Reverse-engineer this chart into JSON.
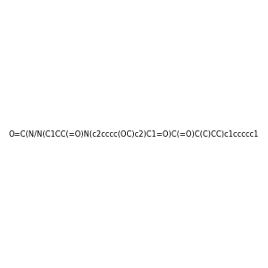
{
  "smiles": "O=C(N/N(C1CC(=O)N(c2cccc(OC)c2)C1=O)C(=O)C(C)CC)c1ccccc1",
  "image_size": 300,
  "background_color": "#f0f0f0"
}
